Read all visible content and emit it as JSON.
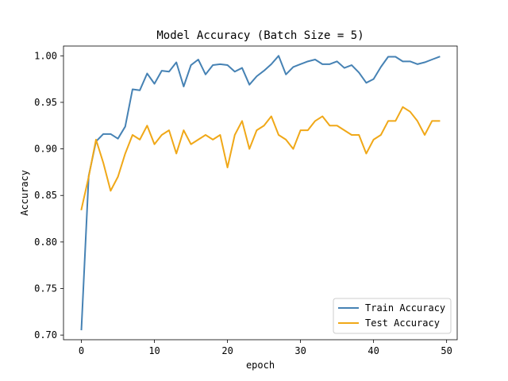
{
  "chart_data": {
    "type": "line",
    "title": "Model Accuracy (Batch Size = 5)",
    "xlabel": "epoch",
    "ylabel": "Accuracy",
    "xlim": [
      -2.45,
      51.45
    ],
    "ylim": [
      0.695,
      1.0105
    ],
    "xticks": [
      0,
      10,
      20,
      30,
      40,
      50
    ],
    "xtick_labels": [
      "0",
      "10",
      "20",
      "30",
      "40",
      "50"
    ],
    "yticks": [
      0.7,
      0.75,
      0.8,
      0.85,
      0.9,
      0.95,
      1.0
    ],
    "ytick_labels": [
      "0.70",
      "0.75",
      "0.80",
      "0.85",
      "0.90",
      "0.95",
      "1.00"
    ],
    "grid": false,
    "legend_position": "lower-right",
    "x": [
      0,
      1,
      2,
      3,
      4,
      5,
      6,
      7,
      8,
      9,
      10,
      11,
      12,
      13,
      14,
      15,
      16,
      17,
      18,
      19,
      20,
      21,
      22,
      23,
      24,
      25,
      26,
      27,
      28,
      29,
      30,
      31,
      32,
      33,
      34,
      35,
      36,
      37,
      38,
      39,
      40,
      41,
      42,
      43,
      44,
      45,
      46,
      47,
      48,
      49
    ],
    "series": [
      {
        "name": "Train Accuracy",
        "color": "#4682b4",
        "values": [
          0.706,
          0.871,
          0.908,
          0.916,
          0.916,
          0.911,
          0.924,
          0.964,
          0.963,
          0.981,
          0.97,
          0.984,
          0.983,
          0.993,
          0.967,
          0.99,
          0.996,
          0.98,
          0.99,
          0.991,
          0.99,
          0.983,
          0.987,
          0.969,
          0.978,
          0.984,
          0.991,
          1.0,
          0.98,
          0.988,
          0.991,
          0.994,
          0.996,
          0.991,
          0.991,
          0.994,
          0.987,
          0.99,
          0.982,
          0.971,
          0.975,
          0.988,
          0.999,
          0.999,
          0.994,
          0.994,
          0.991,
          0.993,
          0.996,
          0.999
        ]
      },
      {
        "name": "Test Accuracy",
        "color": "#f0a818",
        "values": [
          0.835,
          0.87,
          0.91,
          0.885,
          0.855,
          0.87,
          0.895,
          0.915,
          0.91,
          0.925,
          0.905,
          0.915,
          0.92,
          0.895,
          0.92,
          0.905,
          0.91,
          0.915,
          0.91,
          0.915,
          0.88,
          0.915,
          0.93,
          0.9,
          0.92,
          0.925,
          0.935,
          0.915,
          0.91,
          0.9,
          0.92,
          0.92,
          0.93,
          0.935,
          0.925,
          0.925,
          0.92,
          0.915,
          0.915,
          0.895,
          0.91,
          0.915,
          0.93,
          0.93,
          0.945,
          0.94,
          0.93,
          0.915,
          0.93,
          0.93
        ]
      }
    ]
  }
}
